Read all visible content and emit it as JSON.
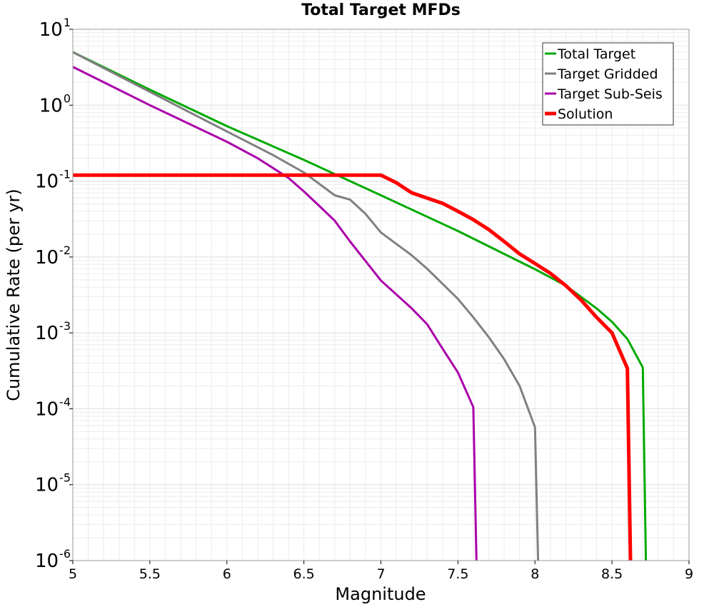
{
  "chart_data": {
    "type": "line",
    "title": "Total Target MFDs",
    "xlabel": "Magnitude",
    "ylabel": "Cumulative Rate (per yr)",
    "xlim": [
      5,
      9
    ],
    "ylim": [
      1e-06,
      10
    ],
    "yscale": "log",
    "xticks": [
      "5",
      "5.5",
      "6",
      "6.5",
      "7",
      "7.5",
      "8",
      "8.5",
      "9"
    ],
    "yticks": [
      {
        "base": "10",
        "exp": "1",
        "value": 10
      },
      {
        "base": "10",
        "exp": "0",
        "value": 1
      },
      {
        "base": "10",
        "exp": "-1",
        "value": 0.1
      },
      {
        "base": "10",
        "exp": "-2",
        "value": 0.01
      },
      {
        "base": "10",
        "exp": "-3",
        "value": 0.001
      },
      {
        "base": "10",
        "exp": "-4",
        "value": 0.0001
      },
      {
        "base": "10",
        "exp": "-5",
        "value": 1e-05
      },
      {
        "base": "10",
        "exp": "-6",
        "value": 1e-06
      }
    ],
    "grid": true,
    "legend_position": "top-right",
    "series": [
      {
        "name": "Total Target",
        "color": "#00aa00",
        "style": "normal",
        "points": [
          [
            5.0,
            5.0
          ],
          [
            5.5,
            1.6
          ],
          [
            6.0,
            0.53
          ],
          [
            6.5,
            0.19
          ],
          [
            7.0,
            0.065
          ],
          [
            7.5,
            0.022
          ],
          [
            8.0,
            0.0069
          ],
          [
            8.2,
            0.0042
          ],
          [
            8.4,
            0.0021
          ],
          [
            8.5,
            0.0014
          ],
          [
            8.6,
            0.00083
          ],
          [
            8.7,
            0.00035
          ],
          [
            8.72,
            1e-06
          ]
        ]
      },
      {
        "name": "Target Gridded",
        "color": "#808080",
        "style": "normal",
        "points": [
          [
            5.0,
            5.0
          ],
          [
            5.5,
            1.5
          ],
          [
            6.0,
            0.45
          ],
          [
            6.3,
            0.22
          ],
          [
            6.5,
            0.13
          ],
          [
            6.7,
            0.065
          ],
          [
            6.8,
            0.057
          ],
          [
            6.9,
            0.037
          ],
          [
            7.0,
            0.021
          ],
          [
            7.2,
            0.0105
          ],
          [
            7.3,
            0.007
          ],
          [
            7.5,
            0.0028
          ],
          [
            7.6,
            0.0016
          ],
          [
            7.7,
            0.00088
          ],
          [
            7.8,
            0.00045
          ],
          [
            7.9,
            0.0002
          ],
          [
            8.0,
            5.7e-05
          ],
          [
            8.02,
            1e-06
          ]
        ]
      },
      {
        "name": "Target Sub-Seis",
        "color": "#aa00aa",
        "style": "normal",
        "points": [
          [
            5.0,
            3.2
          ],
          [
            5.5,
            1.0
          ],
          [
            6.0,
            0.33
          ],
          [
            6.2,
            0.2
          ],
          [
            6.4,
            0.11
          ],
          [
            6.5,
            0.073
          ],
          [
            6.6,
            0.047
          ],
          [
            6.7,
            0.03
          ],
          [
            6.8,
            0.016
          ],
          [
            7.0,
            0.0049
          ],
          [
            7.2,
            0.0021
          ],
          [
            7.3,
            0.0013
          ],
          [
            7.4,
            0.00062
          ],
          [
            7.5,
            0.0003
          ],
          [
            7.6,
            0.000105
          ],
          [
            7.62,
            1e-06
          ]
        ]
      },
      {
        "name": "Solution",
        "color": "#ff0000",
        "style": "thick",
        "points": [
          [
            5.0,
            0.12
          ],
          [
            6.0,
            0.12
          ],
          [
            7.0,
            0.12
          ],
          [
            7.1,
            0.095
          ],
          [
            7.2,
            0.07
          ],
          [
            7.4,
            0.051
          ],
          [
            7.5,
            0.04
          ],
          [
            7.6,
            0.031
          ],
          [
            7.7,
            0.023
          ],
          [
            7.8,
            0.016
          ],
          [
            7.9,
            0.011
          ],
          [
            8.0,
            0.0082
          ],
          [
            8.1,
            0.0061
          ],
          [
            8.2,
            0.0042
          ],
          [
            8.3,
            0.0027
          ],
          [
            8.4,
            0.0016
          ],
          [
            8.5,
            0.001
          ],
          [
            8.6,
            0.00034
          ],
          [
            8.62,
            1e-06
          ]
        ]
      }
    ]
  }
}
